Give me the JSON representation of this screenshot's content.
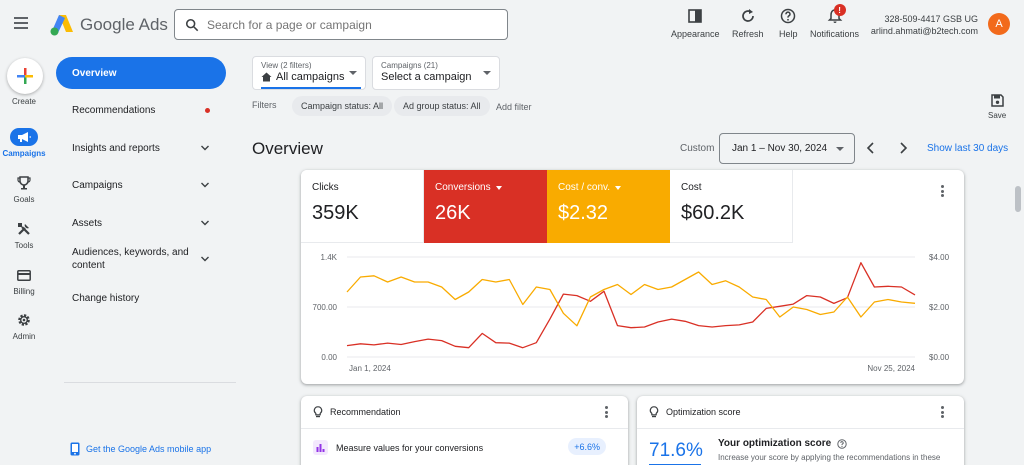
{
  "header": {
    "product_name": "Google Ads",
    "search_placeholder": "Search for a page or campaign",
    "tools": [
      {
        "label": "Appearance",
        "icon": "appearance-icon"
      },
      {
        "label": "Refresh",
        "icon": "refresh-icon"
      },
      {
        "label": "Help",
        "icon": "help-icon"
      },
      {
        "label": "Notifications",
        "icon": "bell-icon",
        "badge": "!"
      }
    ],
    "account_id": "328-509-4417 GSB UG",
    "account_email": "arlind.ahmati@b2tech.com",
    "avatar_letter": "A"
  },
  "rail": {
    "create_label": "Create",
    "items": [
      {
        "label": "Campaigns",
        "icon": "megaphone-icon",
        "active": true
      },
      {
        "label": "Goals",
        "icon": "trophy-icon"
      },
      {
        "label": "Tools",
        "icon": "tools-icon"
      },
      {
        "label": "Billing",
        "icon": "credit-card-icon"
      },
      {
        "label": "Admin",
        "icon": "gear-icon"
      }
    ]
  },
  "nav": {
    "items": [
      {
        "label": "Overview",
        "active": true
      },
      {
        "label": "Recommendations",
        "dot": true
      },
      {
        "label": "Insights and reports",
        "expand": true
      },
      {
        "label": "Campaigns",
        "expand": true
      },
      {
        "label": "Assets",
        "expand": true
      },
      {
        "label": "Audiences, keywords, and content",
        "expand": true
      },
      {
        "label": "Change history"
      }
    ],
    "mobile_link": "Get the Google Ads mobile app"
  },
  "toolbar": {
    "view_sub": "View (2 filters)",
    "view_value": "All campaigns",
    "campaigns_sub": "Campaigns (21)",
    "campaigns_value": "Select a campaign",
    "filters_label": "Filters",
    "chips": [
      "Campaign status: All",
      "Ad group status: All"
    ],
    "add_filter": "Add filter",
    "save_label": "Save"
  },
  "overview": {
    "title": "Overview",
    "custom_label": "Custom",
    "date_range": "Jan 1 – Nov 30, 2024",
    "show_last": "Show last 30 days"
  },
  "metrics": [
    {
      "label": "Clicks",
      "value": "359K",
      "color": "#ffffff",
      "text_color": "#202124",
      "dropdown": false
    },
    {
      "label": "Conversions",
      "value": "26K",
      "color": "#d93025",
      "text_color": "#ffffff",
      "dropdown": true
    },
    {
      "label": "Cost / conv.",
      "value": "$2.32",
      "color": "#f9ab00",
      "text_color": "#ffffff",
      "dropdown": true
    },
    {
      "label": "Cost",
      "value": "$60.2K",
      "color": "#ffffff",
      "text_color": "#202124",
      "dropdown": false
    }
  ],
  "chart_data": {
    "type": "line",
    "x_start": "Jan 1, 2024",
    "x_end": "Nov 25, 2024",
    "y_left_ticks": [
      "1.4K",
      "700.00",
      "0.00"
    ],
    "y_right_ticks": [
      "$4.00",
      "$2.00",
      "$0.00"
    ],
    "y_left_range": [
      0,
      1400
    ],
    "y_right_range": [
      0,
      4
    ],
    "grid": true,
    "series": [
      {
        "name": "Conversions",
        "color": "#d93025",
        "axis": "left",
        "values": [
          160,
          185,
          170,
          195,
          175,
          215,
          250,
          230,
          150,
          130,
          330,
          200,
          195,
          130,
          200,
          530,
          880,
          860,
          780,
          920,
          440,
          410,
          420,
          490,
          530,
          500,
          440,
          420,
          440,
          450,
          490,
          680,
          710,
          740,
          860,
          840,
          750,
          830,
          1320,
          980,
          990,
          980,
          870
        ]
      },
      {
        "name": "Cost / conv.",
        "color": "#f9ab00",
        "axis": "right",
        "values": [
          2.6,
          3.2,
          3.25,
          3.0,
          3.2,
          3.0,
          3.0,
          2.8,
          2.3,
          2.6,
          3.1,
          3.0,
          3.1,
          2.1,
          2.8,
          2.7,
          1.75,
          1.25,
          2.4,
          2.7,
          2.9,
          2.5,
          2.9,
          2.7,
          2.8,
          3.1,
          3.4,
          2.9,
          3.05,
          2.8,
          2.4,
          2.3,
          1.6,
          2.0,
          1.9,
          1.7,
          1.8,
          2.4,
          1.6,
          2.2,
          2.3,
          2.2,
          2.15
        ]
      }
    ]
  },
  "recommendation_card": {
    "title": "Recommendation",
    "item_label": "Measure values for your conversions",
    "item_delta": "+6.6%"
  },
  "optimization_card": {
    "title": "Optimization score",
    "score": "71.6%",
    "score_fraction": 0.716,
    "heading": "Your optimization score",
    "description": "Increase your score by applying the recommendations in these"
  }
}
